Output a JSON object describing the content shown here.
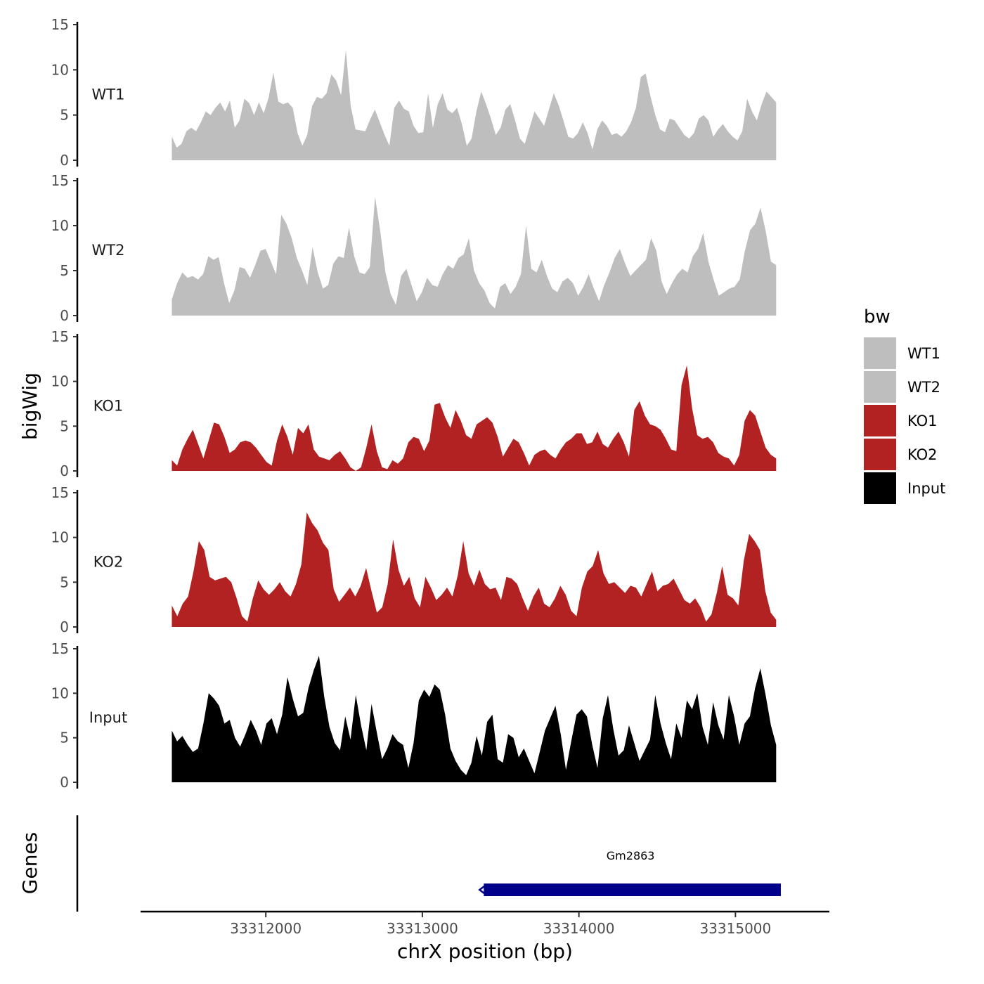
{
  "chart_data": {
    "type": "area",
    "xlabel": "chrX position (bp)",
    "ylabel": "bigWig",
    "ylim": [
      0,
      15
    ],
    "y_ticks": [
      "0",
      "5",
      "10",
      "15"
    ],
    "xlim": [
      33311200,
      33315600
    ],
    "x_ticks": [
      {
        "value": 33312000,
        "label": "33312000"
      },
      {
        "value": 33313000,
        "label": "33313000"
      },
      {
        "value": 33314000,
        "label": "33314000"
      },
      {
        "value": 33315000,
        "label": "33315000"
      }
    ],
    "x_start": 33311400,
    "x_end": 33315260,
    "legend": {
      "title": "bw",
      "items": [
        {
          "label": "WT1",
          "color": "#bebebe"
        },
        {
          "label": "WT2",
          "color": "#bebebe"
        },
        {
          "label": "KO1",
          "color": "#b22222"
        },
        {
          "label": "KO2",
          "color": "#b22222"
        },
        {
          "label": "Input",
          "color": "#000000"
        }
      ]
    },
    "series": [
      {
        "name": "WT1",
        "color": "#bebebe",
        "values": [
          2.6,
          1.4,
          1.8,
          3.2,
          3.6,
          3.2,
          4.2,
          5.4,
          5.0,
          5.8,
          6.4,
          5.4,
          6.6,
          3.6,
          4.4,
          6.8,
          6.3,
          5.0,
          6.4,
          5.2,
          6.9,
          9.7,
          6.5,
          6.2,
          6.4,
          5.8,
          3.0,
          1.6,
          2.8,
          6.0,
          7.0,
          6.8,
          7.4,
          9.5,
          8.8,
          7.2,
          12.2,
          6.0,
          3.4,
          3.3,
          3.2,
          4.5,
          5.6,
          4.2,
          2.8,
          1.6,
          5.8,
          6.6,
          5.7,
          5.4,
          3.8,
          3.0,
          3.1,
          7.4,
          3.6,
          6.2,
          7.4,
          5.6,
          5.2,
          5.8,
          4.0,
          1.6,
          2.4,
          5.4,
          7.6,
          6.2,
          4.6,
          2.8,
          3.6,
          5.6,
          6.2,
          4.4,
          2.4,
          1.8,
          3.6,
          5.4,
          4.6,
          3.8,
          5.6,
          7.4,
          6.1,
          4.4,
          2.6,
          2.4,
          3.0,
          4.2,
          3.0,
          1.2,
          3.4,
          4.4,
          3.8,
          2.8,
          3.0,
          2.6,
          3.2,
          4.2,
          5.8,
          9.2,
          9.6,
          7.1,
          5.0,
          3.4,
          3.1,
          4.6,
          4.4,
          3.6,
          2.8,
          2.4,
          3.0,
          4.6,
          5.0,
          4.4,
          2.6,
          3.4,
          4.0,
          3.2,
          2.6,
          2.2,
          3.2,
          6.8,
          5.4,
          4.4,
          6.2,
          7.6,
          7.0,
          6.4
        ]
      },
      {
        "name": "WT2",
        "color": "#bebebe",
        "values": [
          1.8,
          3.6,
          4.8,
          4.2,
          4.4,
          4.0,
          4.6,
          6.6,
          6.2,
          6.5,
          3.6,
          1.4,
          2.8,
          5.4,
          5.2,
          4.2,
          5.6,
          7.2,
          7.4,
          6.0,
          4.6,
          11.2,
          10.2,
          8.6,
          6.4,
          5.0,
          3.4,
          7.6,
          4.8,
          3.0,
          3.4,
          5.8,
          6.6,
          6.4,
          9.8,
          6.6,
          4.8,
          4.6,
          5.4,
          13.2,
          9.4,
          4.8,
          2.4,
          1.2,
          4.4,
          5.2,
          3.4,
          1.6,
          2.6,
          4.2,
          3.4,
          3.2,
          4.6,
          5.6,
          5.2,
          6.4,
          6.8,
          8.6,
          5.0,
          3.6,
          2.8,
          1.4,
          0.8,
          3.2,
          3.6,
          2.4,
          3.2,
          4.6,
          10.0,
          5.2,
          4.8,
          6.2,
          4.4,
          3.0,
          2.6,
          3.8,
          4.2,
          3.6,
          2.2,
          3.2,
          4.6,
          3.0,
          1.6,
          3.4,
          4.8,
          6.4,
          7.4,
          5.8,
          4.4,
          5.0,
          5.6,
          6.2,
          8.6,
          7.2,
          3.8,
          2.4,
          3.6,
          4.6,
          5.2,
          4.8,
          6.6,
          7.4,
          9.2,
          6.0,
          4.0,
          2.2,
          2.6,
          3.0,
          3.2,
          4.0,
          7.2,
          9.5,
          10.2,
          12.0,
          9.4,
          6.0,
          5.6
        ]
      },
      {
        "name": "KO1",
        "color": "#b22222",
        "values": [
          1.2,
          0.6,
          2.4,
          3.6,
          4.6,
          3.0,
          1.4,
          3.4,
          5.4,
          5.2,
          3.8,
          2.0,
          2.4,
          3.2,
          3.4,
          3.2,
          2.6,
          1.8,
          1.0,
          0.6,
          3.4,
          5.2,
          3.8,
          1.8,
          4.8,
          4.2,
          5.2,
          2.4,
          1.6,
          1.4,
          1.2,
          1.8,
          2.2,
          1.4,
          0.4,
          0.0,
          0.4,
          2.6,
          5.2,
          2.2,
          0.4,
          0.2,
          1.2,
          0.8,
          1.4,
          3.2,
          3.8,
          3.6,
          2.2,
          3.4,
          7.4,
          7.6,
          6.0,
          4.8,
          6.8,
          5.6,
          4.0,
          3.6,
          5.2,
          5.6,
          6.0,
          5.4,
          3.8,
          1.6,
          2.6,
          3.6,
          3.2,
          2.0,
          0.6,
          1.8,
          2.2,
          2.4,
          1.8,
          1.4,
          2.4,
          3.2,
          3.6,
          4.2,
          4.2,
          3.0,
          3.2,
          4.4,
          3.0,
          2.6,
          3.6,
          4.4,
          3.2,
          1.6,
          6.8,
          7.8,
          6.2,
          5.2,
          5.0,
          4.6,
          3.6,
          2.4,
          2.2,
          9.6,
          11.8,
          7.0,
          4.0,
          3.6,
          3.8,
          3.2,
          2.0,
          1.6,
          1.4,
          0.6,
          1.8,
          5.6,
          6.8,
          6.2,
          4.4,
          2.6,
          1.8,
          1.4
        ]
      },
      {
        "name": "KO2",
        "color": "#b22222",
        "values": [
          2.4,
          1.2,
          2.6,
          3.4,
          6.2,
          9.6,
          8.6,
          5.6,
          5.2,
          5.4,
          5.6,
          5.0,
          3.2,
          1.2,
          0.6,
          3.2,
          5.2,
          4.2,
          3.6,
          4.2,
          5.0,
          4.0,
          3.4,
          4.8,
          7.0,
          12.8,
          11.6,
          10.8,
          9.4,
          8.6,
          4.2,
          2.8,
          3.6,
          4.4,
          3.4,
          4.6,
          6.6,
          4.0,
          1.6,
          2.2,
          4.8,
          9.8,
          6.4,
          4.6,
          5.6,
          3.2,
          2.2,
          5.6,
          4.4,
          3.0,
          3.6,
          4.4,
          3.4,
          5.8,
          9.6,
          6.0,
          4.6,
          6.4,
          4.8,
          4.2,
          4.4,
          3.0,
          5.6,
          5.4,
          4.8,
          3.2,
          1.8,
          3.4,
          4.4,
          2.6,
          2.2,
          3.2,
          4.6,
          3.6,
          1.8,
          1.2,
          4.4,
          6.2,
          6.8,
          8.6,
          6.0,
          4.8,
          5.0,
          4.4,
          3.8,
          4.6,
          4.4,
          3.4,
          4.8,
          6.2,
          4.0,
          4.6,
          4.8,
          5.4,
          4.2,
          3.0,
          2.6,
          3.2,
          2.2,
          0.6,
          1.4,
          3.8,
          6.8,
          3.6,
          3.2,
          2.4,
          7.4,
          10.4,
          9.6,
          8.6,
          4.0,
          1.6,
          0.8
        ]
      },
      {
        "name": "Input",
        "color": "#000000",
        "values": [
          5.8,
          4.6,
          5.2,
          4.2,
          3.4,
          3.8,
          6.6,
          10.0,
          9.4,
          8.6,
          6.6,
          7.0,
          5.0,
          4.0,
          5.4,
          7.0,
          5.8,
          4.2,
          6.6,
          7.2,
          5.4,
          7.6,
          11.8,
          9.4,
          7.4,
          7.8,
          10.6,
          12.6,
          14.2,
          9.6,
          6.2,
          4.4,
          3.6,
          7.4,
          4.8,
          9.8,
          6.4,
          3.6,
          8.8,
          5.6,
          2.6,
          3.8,
          5.4,
          4.6,
          4.2,
          1.6,
          4.4,
          9.2,
          10.4,
          9.6,
          11.0,
          10.4,
          7.6,
          3.8,
          2.4,
          1.4,
          0.8,
          2.2,
          5.2,
          3.0,
          6.8,
          7.6,
          2.6,
          2.2,
          5.4,
          5.0,
          2.8,
          3.8,
          2.4,
          1.0,
          3.4,
          5.8,
          7.2,
          8.6,
          5.4,
          1.4,
          4.6,
          7.6,
          8.2,
          7.4,
          4.2,
          1.6,
          7.2,
          9.8,
          6.0,
          3.0,
          3.6,
          6.4,
          4.4,
          2.4,
          3.6,
          4.8,
          9.8,
          6.6,
          4.4,
          2.6,
          6.6,
          5.0,
          9.2,
          8.2,
          10.0,
          6.2,
          4.2,
          9.0,
          6.4,
          4.8,
          9.8,
          7.4,
          4.2,
          6.6,
          7.4,
          10.6,
          12.8,
          9.8,
          6.4,
          4.2
        ]
      }
    ],
    "gene_track": {
      "ylabel": "Genes",
      "genes": [
        {
          "name": "Gm2863",
          "start": 33313370,
          "end": 33315290,
          "strand": "-",
          "color": "#00008b"
        }
      ]
    }
  }
}
